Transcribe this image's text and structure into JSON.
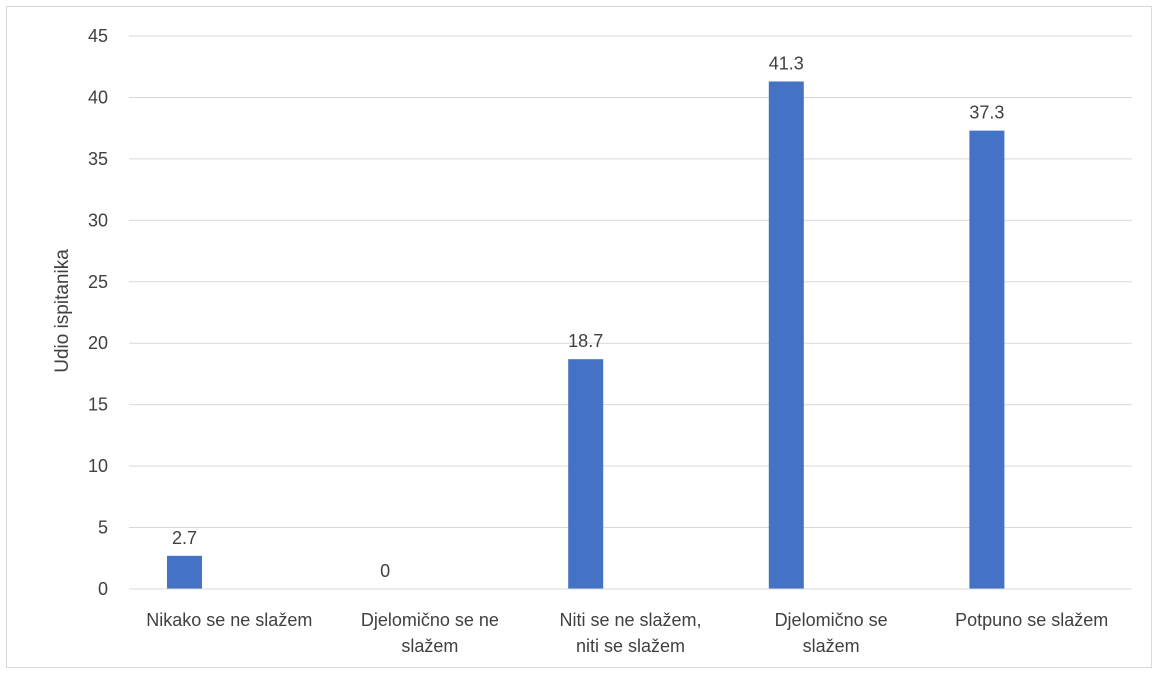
{
  "chart_data": {
    "type": "bar",
    "title": "",
    "xlabel": "",
    "ylabel": "Udio ispitanika",
    "ylim": [
      0,
      45
    ],
    "ytick_step": 5,
    "yticks": [
      "0",
      "5",
      "10",
      "15",
      "20",
      "25",
      "30",
      "35",
      "40",
      "45"
    ],
    "grid": true,
    "legend": "none",
    "categories": [
      [
        "Nikako se ne slažem"
      ],
      [
        "Djelomično se ne",
        "slažem"
      ],
      [
        "Niti se ne slažem,",
        "niti se slažem"
      ],
      [
        "Djelomično se",
        "slažem"
      ],
      [
        "Potpuno se slažem"
      ]
    ],
    "values": [
      2.7,
      0,
      18.7,
      41.3,
      37.3
    ],
    "data_labels": [
      "2.7",
      "0",
      "18.7",
      "41.3",
      "37.3"
    ],
    "bar_color": "#4472c4",
    "grid_color": "#d9d9d9",
    "text_color": "#404040"
  }
}
